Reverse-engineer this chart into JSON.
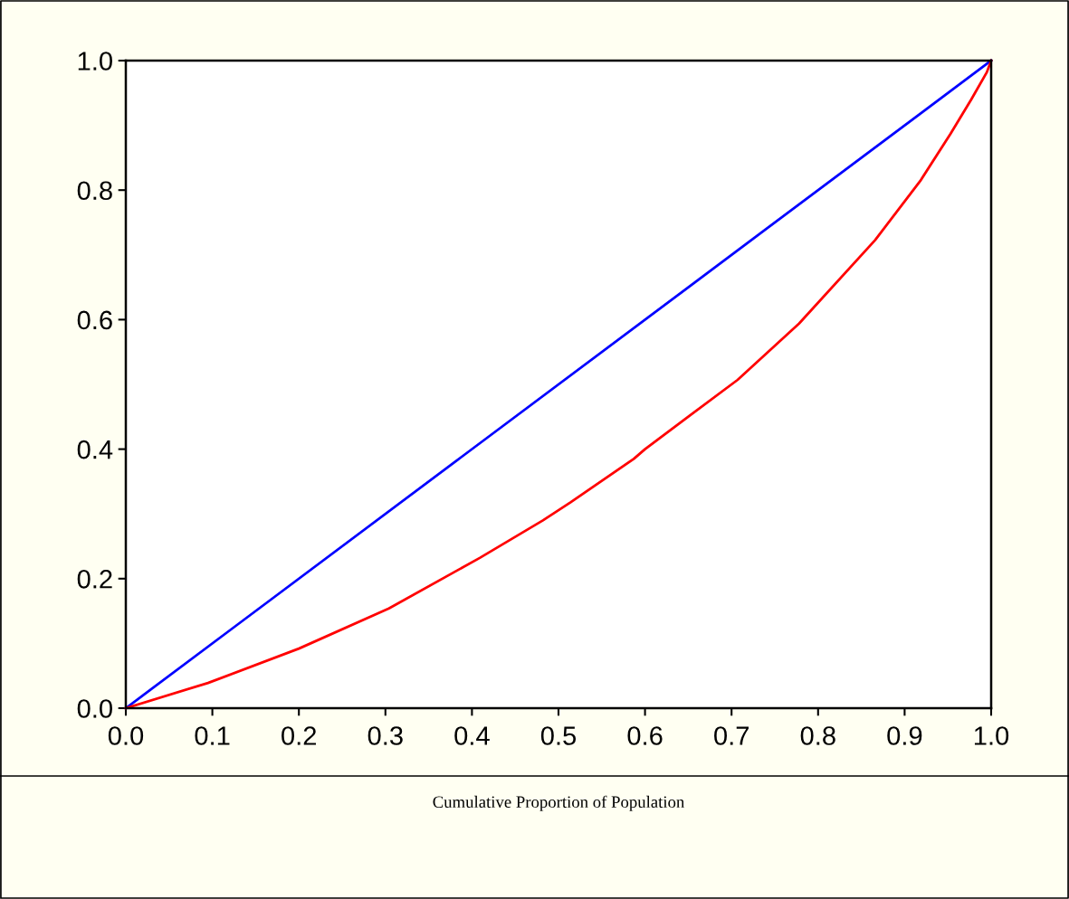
{
  "chart_data": {
    "type": "line",
    "xlabel": "Cumulative Proportion of Population",
    "xlim": [
      0.0,
      1.0
    ],
    "ylim": [
      0.0,
      1.0
    ],
    "xticks": [
      {
        "value": 0,
        "label": "0.0"
      },
      0.1,
      0.2,
      0.3,
      0.4,
      0.5,
      0.6,
      0.7,
      0.8,
      0.9,
      {
        "value": 1,
        "label": "1.0"
      }
    ],
    "yticks": [
      {
        "value": 0,
        "label": "0.0"
      },
      0.2,
      0.4,
      0.6,
      0.8,
      {
        "value": 1,
        "label": "1.0"
      }
    ],
    "grid": false,
    "marker": "none",
    "line_style": "solid",
    "series": [
      {
        "color": "#0000ff",
        "x": [
          0,
          1
        ],
        "values": [
          0,
          1
        ]
      },
      {
        "color": "#ff0000",
        "x": [
          0,
          0.095,
          0.2,
          0.304,
          0.409,
          0.482,
          0.514,
          0.587,
          0.6,
          0.707,
          0.778,
          0.866,
          0.918,
          0.953,
          0.977,
          0.995,
          1.0
        ],
        "values": [
          0,
          0.039,
          0.092,
          0.154,
          0.232,
          0.29,
          0.318,
          0.385,
          0.4,
          0.507,
          0.594,
          0.723,
          0.814,
          0.887,
          0.94,
          0.982,
          1.0
        ]
      }
    ]
  }
}
